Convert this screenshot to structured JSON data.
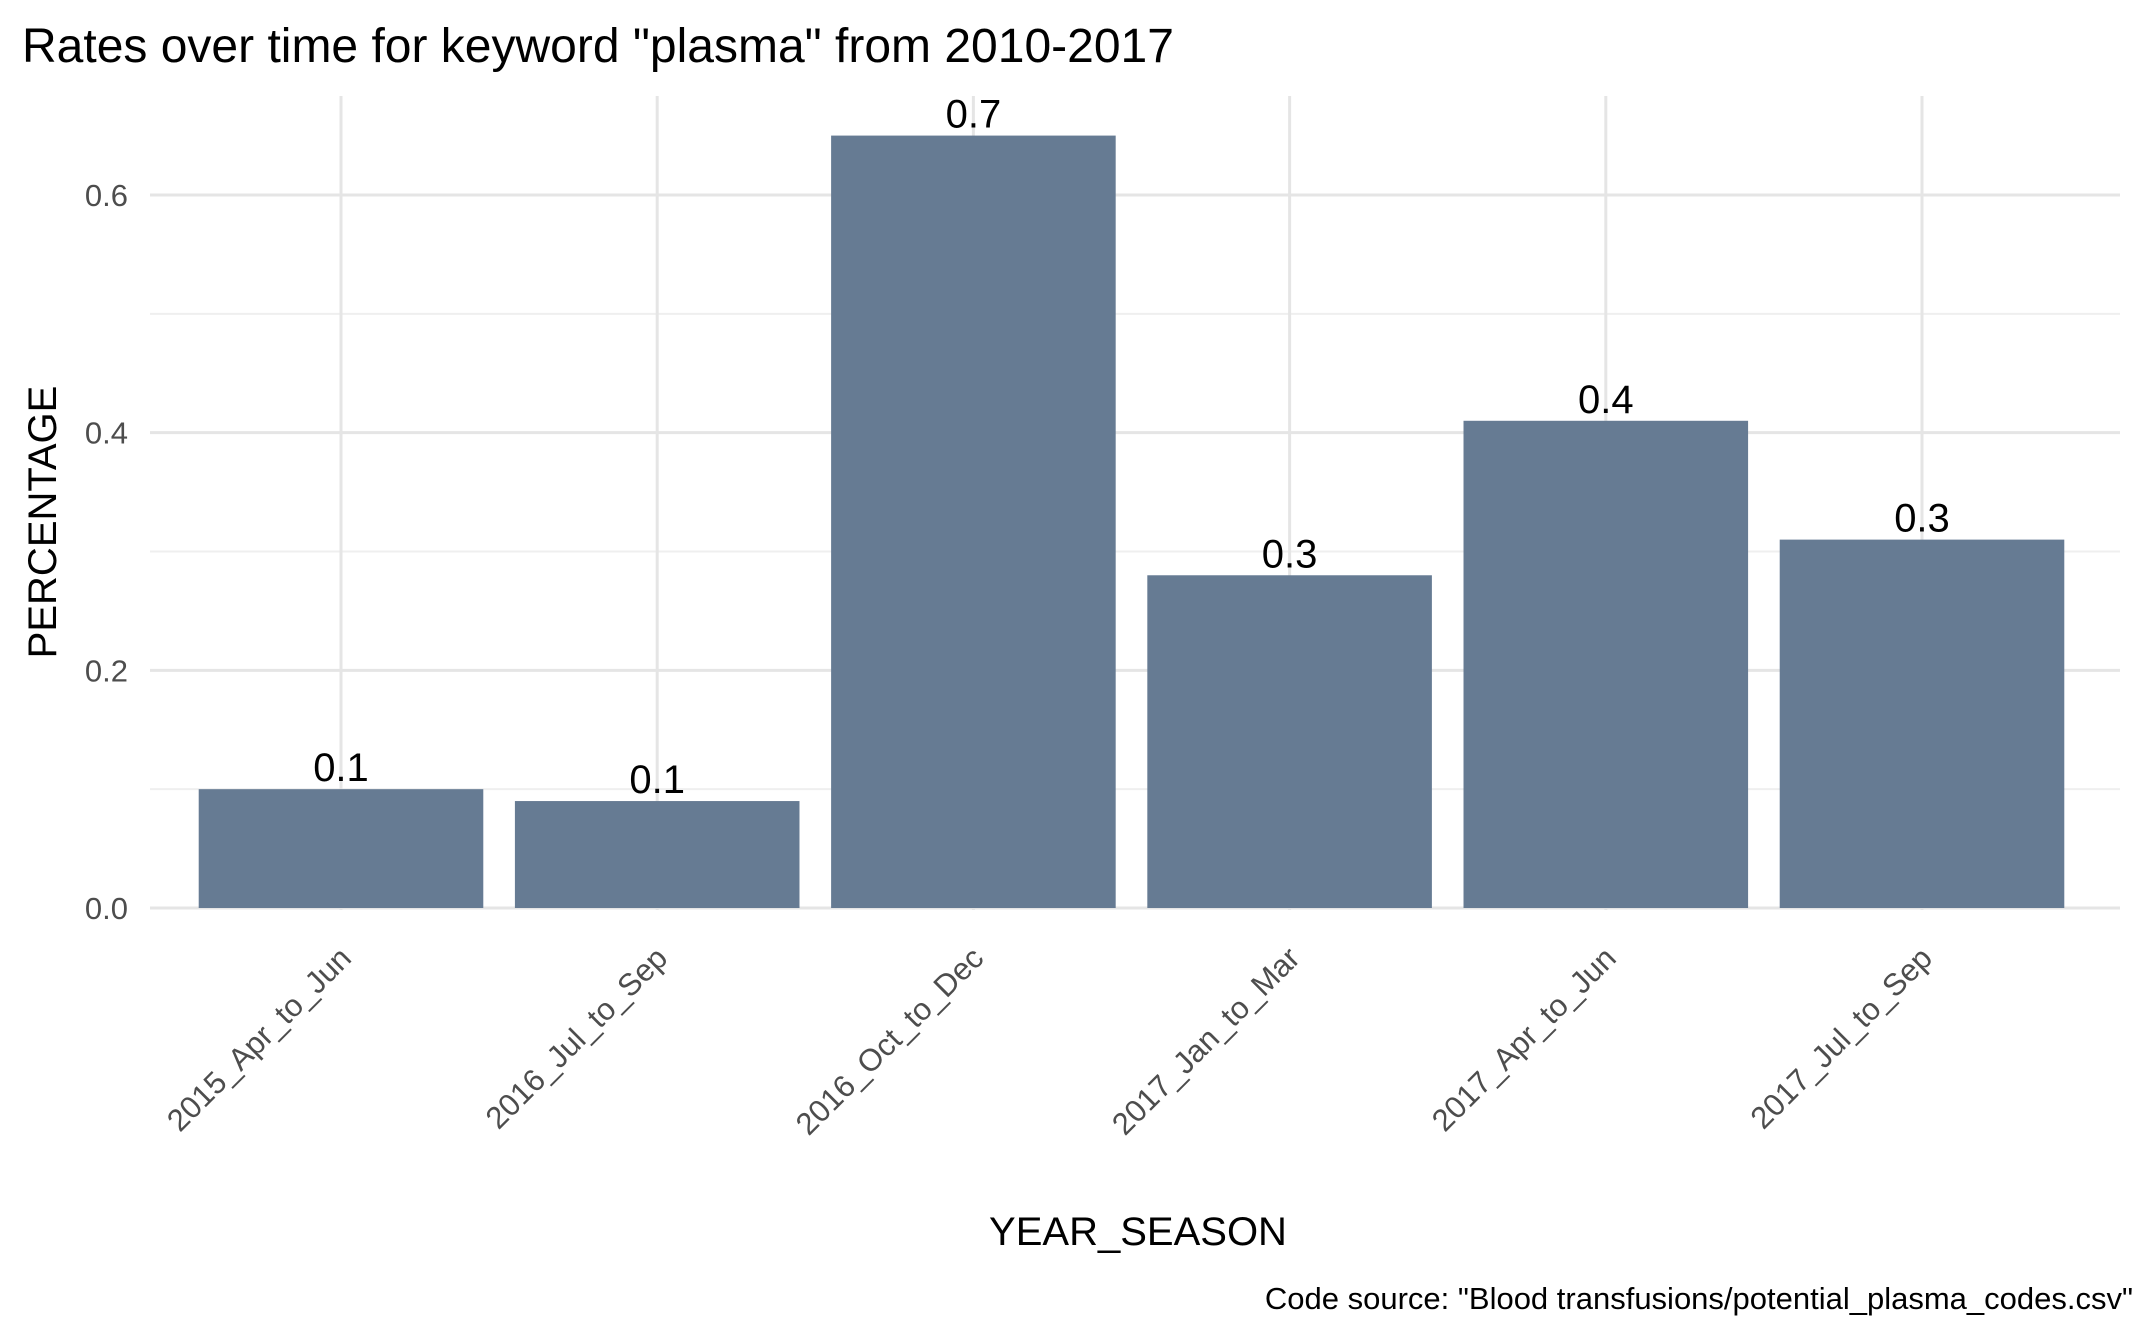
{
  "chart_data": {
    "type": "bar",
    "title": "Rates over time for keyword \"plasma\" from 2010-2017",
    "xlabel": "YEAR_SEASON",
    "ylabel": "PERCENTAGE",
    "caption": "Code source: \"Blood transfusions/potential_plasma_codes.csv\"",
    "categories": [
      "2015_Apr_to_Jun",
      "2016_Jul_to_Sep",
      "2016_Oct_to_Dec",
      "2017_Jan_to_Mar",
      "2017_Apr_to_Jun",
      "2017_Jul_to_Sep"
    ],
    "values": [
      0.1,
      0.09,
      0.65,
      0.28,
      0.41,
      0.31
    ],
    "data_labels": [
      "0.1",
      "0.1",
      "0.7",
      "0.3",
      "0.4",
      "0.3"
    ],
    "ylim": [
      0,
      0.68
    ],
    "yticks": [
      0.0,
      0.2,
      0.4,
      0.6
    ],
    "ytick_labels": [
      "0.0",
      "0.2",
      "0.4",
      "0.6"
    ],
    "grid": true,
    "bar_color": "#667b93"
  }
}
